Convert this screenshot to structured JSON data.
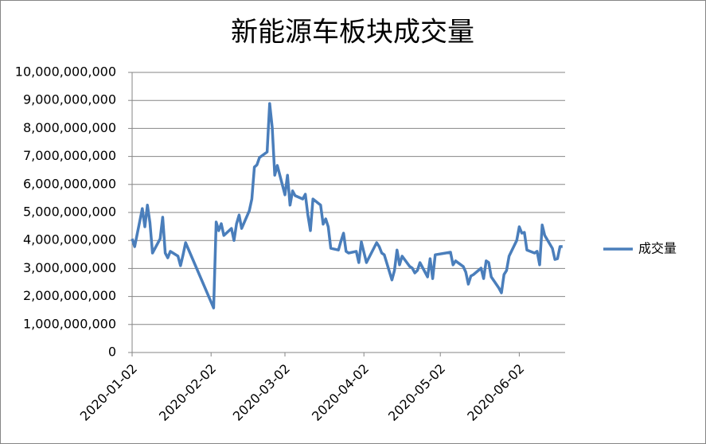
{
  "chart_data": {
    "type": "line",
    "title": "新能源车板块成交量",
    "x": [
      "2020-01-02",
      "2020-01-03",
      "2020-01-06",
      "2020-01-07",
      "2020-01-08",
      "2020-01-09",
      "2020-01-10",
      "2020-01-13",
      "2020-01-14",
      "2020-01-15",
      "2020-01-16",
      "2020-01-17",
      "2020-01-20",
      "2020-01-21",
      "2020-01-22",
      "2020-01-23",
      "2020-02-03",
      "2020-02-04",
      "2020-02-05",
      "2020-02-06",
      "2020-02-07",
      "2020-02-10",
      "2020-02-11",
      "2020-02-12",
      "2020-02-13",
      "2020-02-14",
      "2020-02-17",
      "2020-02-18",
      "2020-02-19",
      "2020-02-20",
      "2020-02-21",
      "2020-02-24",
      "2020-02-25",
      "2020-02-26",
      "2020-02-27",
      "2020-02-28",
      "2020-03-02",
      "2020-03-03",
      "2020-03-04",
      "2020-03-05",
      "2020-03-06",
      "2020-03-09",
      "2020-03-10",
      "2020-03-11",
      "2020-03-12",
      "2020-03-13",
      "2020-03-16",
      "2020-03-17",
      "2020-03-18",
      "2020-03-19",
      "2020-03-20",
      "2020-03-23",
      "2020-03-24",
      "2020-03-25",
      "2020-03-26",
      "2020-03-27",
      "2020-03-30",
      "2020-03-31",
      "2020-04-01",
      "2020-04-02",
      "2020-04-03",
      "2020-04-07",
      "2020-04-08",
      "2020-04-09",
      "2020-04-10",
      "2020-04-13",
      "2020-04-14",
      "2020-04-15",
      "2020-04-16",
      "2020-04-17",
      "2020-04-20",
      "2020-04-21",
      "2020-04-22",
      "2020-04-23",
      "2020-04-24",
      "2020-04-27",
      "2020-04-28",
      "2020-04-29",
      "2020-04-30",
      "2020-05-06",
      "2020-05-07",
      "2020-05-08",
      "2020-05-11",
      "2020-05-12",
      "2020-05-13",
      "2020-05-14",
      "2020-05-15",
      "2020-05-18",
      "2020-05-19",
      "2020-05-20",
      "2020-05-21",
      "2020-05-22",
      "2020-05-25",
      "2020-05-26",
      "2020-05-27",
      "2020-05-28",
      "2020-05-29",
      "2020-06-01",
      "2020-06-02",
      "2020-06-03",
      "2020-06-04",
      "2020-06-05",
      "2020-06-08",
      "2020-06-09",
      "2020-06-10",
      "2020-06-11",
      "2020-06-12",
      "2020-06-15",
      "2020-06-16",
      "2020-06-17",
      "2020-06-18",
      "2020-06-19"
    ],
    "series": [
      {
        "name": "成交量",
        "color": "#4a7ebb",
        "values": [
          4060000000,
          3780000000,
          5140000000,
          4490000000,
          5260000000,
          4630000000,
          3550000000,
          4060000000,
          4830000000,
          3550000000,
          3380000000,
          3610000000,
          3440000000,
          3100000000,
          3490000000,
          3920000000,
          1590000000,
          4660000000,
          4350000000,
          4600000000,
          4180000000,
          4430000000,
          4000000000,
          4600000000,
          4910000000,
          4430000000,
          5060000000,
          5480000000,
          6620000000,
          6700000000,
          6960000000,
          7160000000,
          8890000000,
          8040000000,
          6330000000,
          6680000000,
          5630000000,
          6330000000,
          5260000000,
          5770000000,
          5600000000,
          5480000000,
          5650000000,
          4910000000,
          4350000000,
          5480000000,
          5260000000,
          4580000000,
          4770000000,
          4490000000,
          3720000000,
          3660000000,
          3980000000,
          4260000000,
          3610000000,
          3550000000,
          3610000000,
          3210000000,
          3950000000,
          3580000000,
          3210000000,
          3920000000,
          3780000000,
          3550000000,
          3490000000,
          2590000000,
          2930000000,
          3660000000,
          3130000000,
          3440000000,
          3070000000,
          3010000000,
          2840000000,
          2930000000,
          3210000000,
          2700000000,
          3350000000,
          2640000000,
          3490000000,
          3580000000,
          3130000000,
          3270000000,
          3070000000,
          2870000000,
          2440000000,
          2730000000,
          2780000000,
          3010000000,
          2640000000,
          3270000000,
          3210000000,
          2700000000,
          2300000000,
          2130000000,
          2780000000,
          2930000000,
          3440000000,
          4000000000,
          4490000000,
          4260000000,
          4290000000,
          3660000000,
          3550000000,
          3610000000,
          3130000000,
          4550000000,
          4180000000,
          3720000000,
          3320000000,
          3350000000,
          3780000000,
          3780000000
        ]
      }
    ],
    "xlim": [
      "2020-01-02",
      "2020-06-20"
    ],
    "xticks": [
      "2020-01-02",
      "2020-02-02",
      "2020-03-02",
      "2020-04-02",
      "2020-05-02",
      "2020-06-02"
    ],
    "ylim": [
      0,
      10000000000
    ],
    "yticks": [
      0,
      {
        "value": 1000000000,
        "label": "1,000,000,000"
      },
      {
        "value": 2000000000,
        "label": "2,000,000,000"
      },
      {
        "value": 3000000000,
        "label": "3,000,000,000"
      },
      {
        "value": 4000000000,
        "label": "4,000,000,000"
      },
      {
        "value": 5000000000,
        "label": "5,000,000,000"
      },
      {
        "value": 6000000000,
        "label": "6,000,000,000"
      },
      {
        "value": 7000000000,
        "label": "7,000,000,000"
      },
      {
        "value": 8000000000,
        "label": "8,000,000,000"
      },
      {
        "value": 9000000000,
        "label": "9,000,000,000"
      },
      {
        "value": 10000000000,
        "label": "10,000,000,000"
      }
    ],
    "grid": true,
    "legend": "right"
  }
}
